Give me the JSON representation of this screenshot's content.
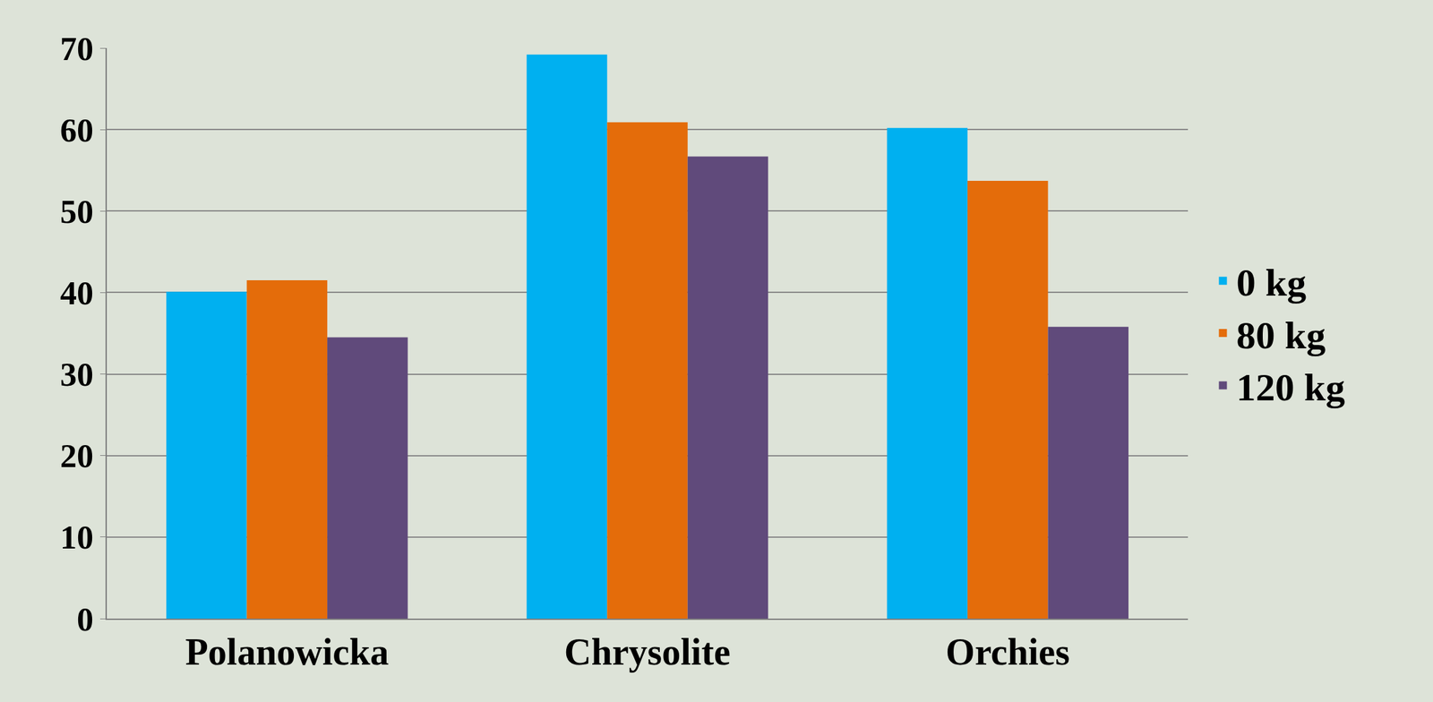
{
  "chart_data": {
    "type": "bar",
    "categories": [
      "Polanowicka",
      "Chrysolite",
      "Orchies"
    ],
    "series": [
      {
        "name": "0 kg",
        "color": "#00b0f0",
        "values": [
          40.1,
          69.2,
          60.2
        ]
      },
      {
        "name": "80 kg",
        "color": "#e46c0a",
        "values": [
          41.5,
          60.9,
          53.7
        ]
      },
      {
        "name": "120 kg",
        "color": "#604a7b",
        "values": [
          34.5,
          56.7,
          35.8
        ]
      }
    ],
    "ylim": [
      0,
      70
    ],
    "yticks": [
      0,
      10,
      20,
      30,
      40,
      50,
      60,
      70
    ],
    "grid": true,
    "legend": "right"
  }
}
